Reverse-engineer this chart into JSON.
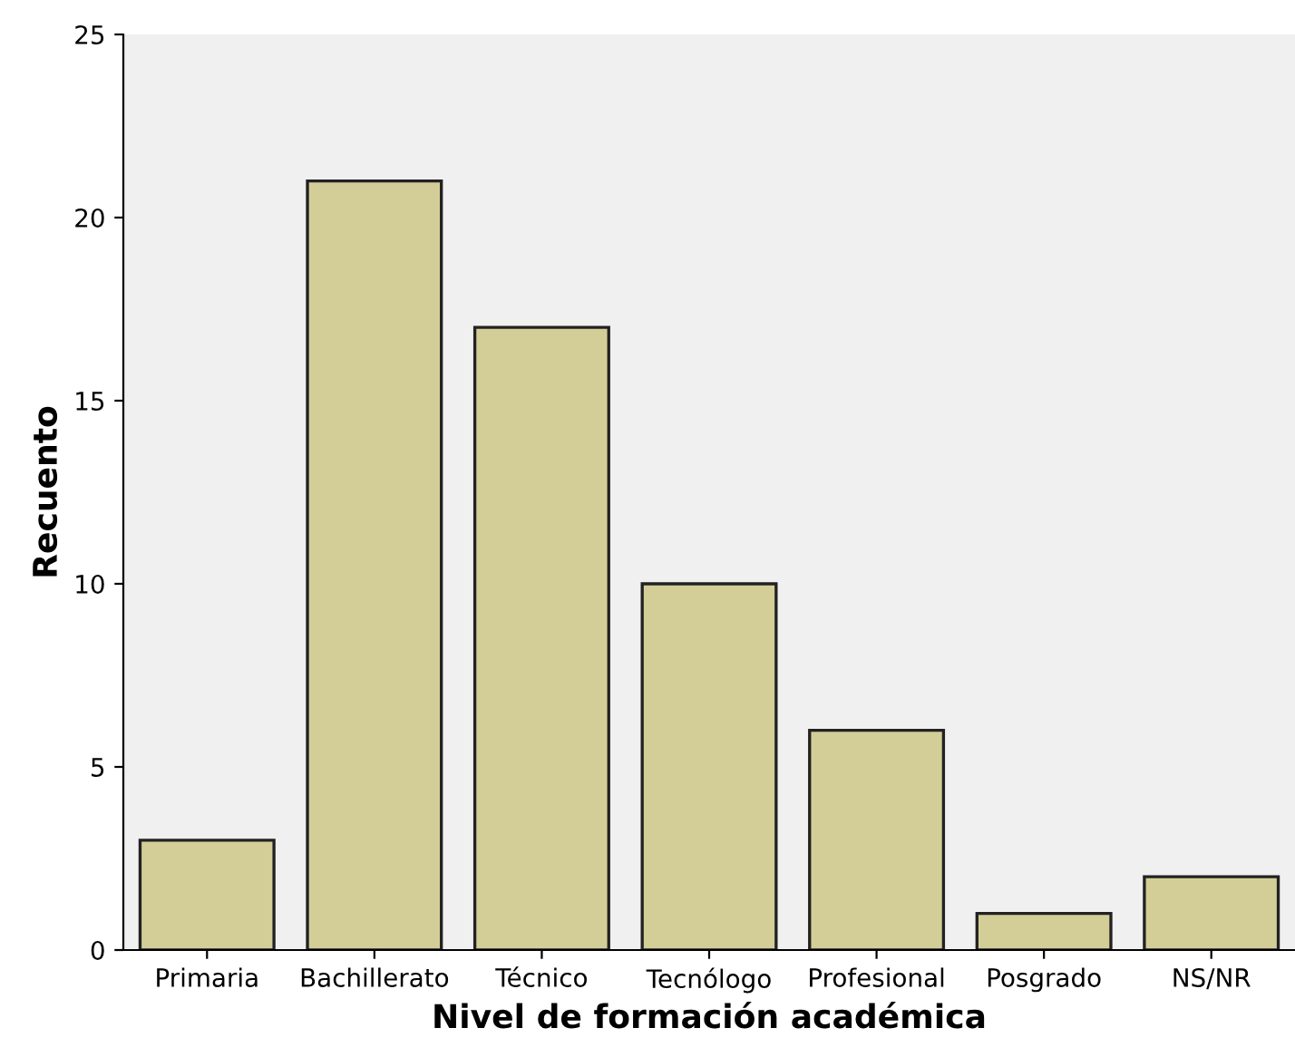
{
  "chart_data": {
    "type": "bar",
    "xlabel": "Nivel de formación académica",
    "ylabel": "Recuento",
    "categories": [
      "Primaria",
      "Bachillerato",
      "Técnico",
      "Tecnólogo",
      "Profesional",
      "Posgrado",
      "NS/NR"
    ],
    "values": [
      3,
      21,
      17,
      10,
      6,
      1,
      2
    ],
    "color": "#d3ce97",
    "ylim": [
      0,
      25
    ],
    "yticks": [
      0,
      5,
      10,
      15,
      20,
      25
    ],
    "grid": false,
    "legend": false
  }
}
